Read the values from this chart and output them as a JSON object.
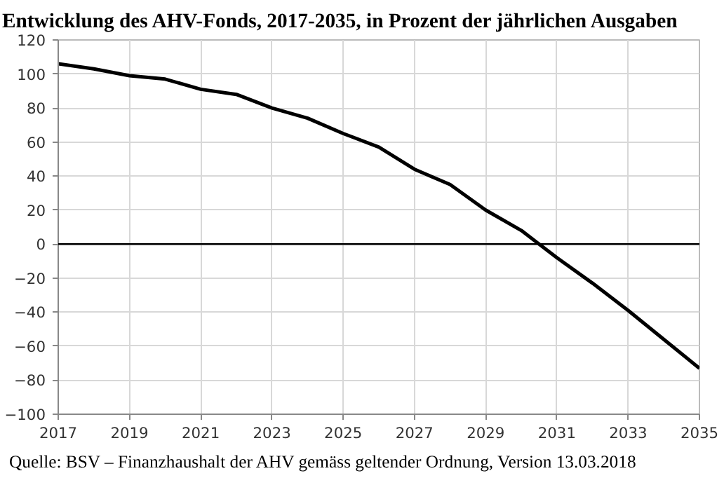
{
  "chart_data": {
    "type": "line",
    "title": "Entwicklung des AHV-Fonds, 2017-2035, in Prozent der jährlichen Ausgaben",
    "x": [
      2017,
      2018,
      2019,
      2020,
      2021,
      2022,
      2023,
      2024,
      2025,
      2026,
      2027,
      2028,
      2029,
      2030,
      2031,
      2032,
      2033,
      2034,
      2035
    ],
    "series": [
      {
        "color": "#000000",
        "values": [
          106,
          103,
          99,
          97,
          91,
          88,
          80,
          74,
          65,
          57,
          44,
          35,
          20,
          8,
          -8,
          -23,
          -39,
          -56,
          -73
        ]
      }
    ],
    "xlim": [
      2017,
      2035
    ],
    "xticks": [
      2017,
      2019,
      2021,
      2023,
      2025,
      2027,
      2029,
      2031,
      2033,
      2035
    ],
    "ylim": [
      -100,
      120
    ],
    "yticks": [
      -100,
      -80,
      -60,
      -40,
      -20,
      0,
      20,
      40,
      60,
      80,
      100,
      120
    ],
    "grid": true,
    "marker": "none",
    "line_style": "solid",
    "ref_lines": [
      {
        "axis": "y",
        "value": 0,
        "color": "#000000"
      }
    ],
    "annotations": [
      "Quelle: BSV – Finanzhaushalt der AHV gemäss geltender Ordnung, Version 13.03.2018"
    ]
  }
}
